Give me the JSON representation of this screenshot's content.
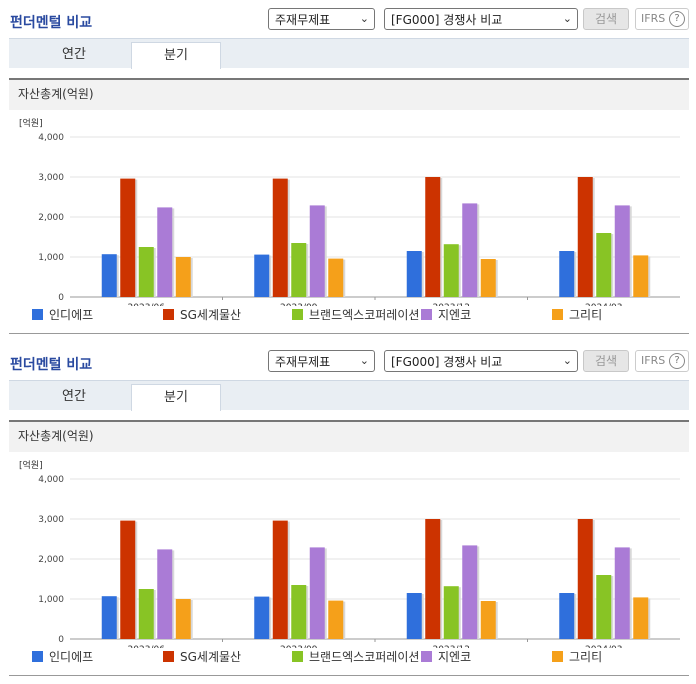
{
  "panels": [
    {
      "title": "펀더멘털 비교",
      "select_theme": "주재무제표",
      "select_compare": "[FG000] 경쟁사 비교",
      "search_label": "검색",
      "ifrs_label": "IFRS",
      "ifrs_help": "?",
      "tabs": [
        {
          "label": "연간"
        },
        {
          "label": "분기"
        }
      ],
      "active_tab": "분기",
      "section_title": "자산총계(억원)"
    },
    {
      "title": "펀더멘털 비교",
      "select_theme": "주재무제표",
      "select_compare": "[FG000] 경쟁사 비교",
      "search_label": "검색",
      "ifrs_label": "IFRS",
      "ifrs_help": "?",
      "tabs": [
        {
          "label": "연간"
        },
        {
          "label": "분기"
        }
      ],
      "active_tab": "분기",
      "section_title": "자산총계(억원)"
    }
  ],
  "colors": {
    "인디에프": "#2f6fdc",
    "SG세계물산": "#cc3300",
    "브랜드엑스코퍼레이션": "#88c425",
    "지엔코": "#aa7bd6",
    "그리티": "#f5a01a"
  },
  "chart_data": [
    {
      "type": "bar",
      "unit_label": "[억원]",
      "categories": [
        "2023/06",
        "2023/09",
        "2023/12",
        "2024/03"
      ],
      "y_ticks": [
        "0",
        "1,000",
        "2,000",
        "3,000",
        "4,000"
      ],
      "ylim": [
        0,
        4000
      ],
      "grid": true,
      "legend_position": "bottom",
      "series": [
        {
          "name": "인디에프",
          "values": [
            1070,
            1060,
            1150,
            1150
          ]
        },
        {
          "name": "SG세계물산",
          "values": [
            2960,
            2960,
            3000,
            3000
          ]
        },
        {
          "name": "브랜드엑스코퍼레이션",
          "values": [
            1250,
            1350,
            1320,
            1600
          ]
        },
        {
          "name": "지엔코",
          "values": [
            2240,
            2290,
            2340,
            2290
          ]
        },
        {
          "name": "그리티",
          "values": [
            1000,
            960,
            950,
            1040
          ]
        }
      ]
    },
    {
      "type": "bar",
      "unit_label": "[억원]",
      "categories": [
        "2023/06",
        "2023/09",
        "2023/12",
        "2024/03"
      ],
      "y_ticks": [
        "0",
        "1,000",
        "2,000",
        "3,000",
        "4,000"
      ],
      "ylim": [
        0,
        4000
      ],
      "grid": true,
      "legend_position": "bottom",
      "series": [
        {
          "name": "인디에프",
          "values": [
            1070,
            1060,
            1150,
            1150
          ]
        },
        {
          "name": "SG세계물산",
          "values": [
            2960,
            2960,
            3000,
            3000
          ]
        },
        {
          "name": "브랜드엑스코퍼레이션",
          "values": [
            1250,
            1350,
            1320,
            1600
          ]
        },
        {
          "name": "지엔코",
          "values": [
            2240,
            2290,
            2340,
            2290
          ]
        },
        {
          "name": "그리티",
          "values": [
            1000,
            960,
            950,
            1040
          ]
        }
      ]
    }
  ]
}
